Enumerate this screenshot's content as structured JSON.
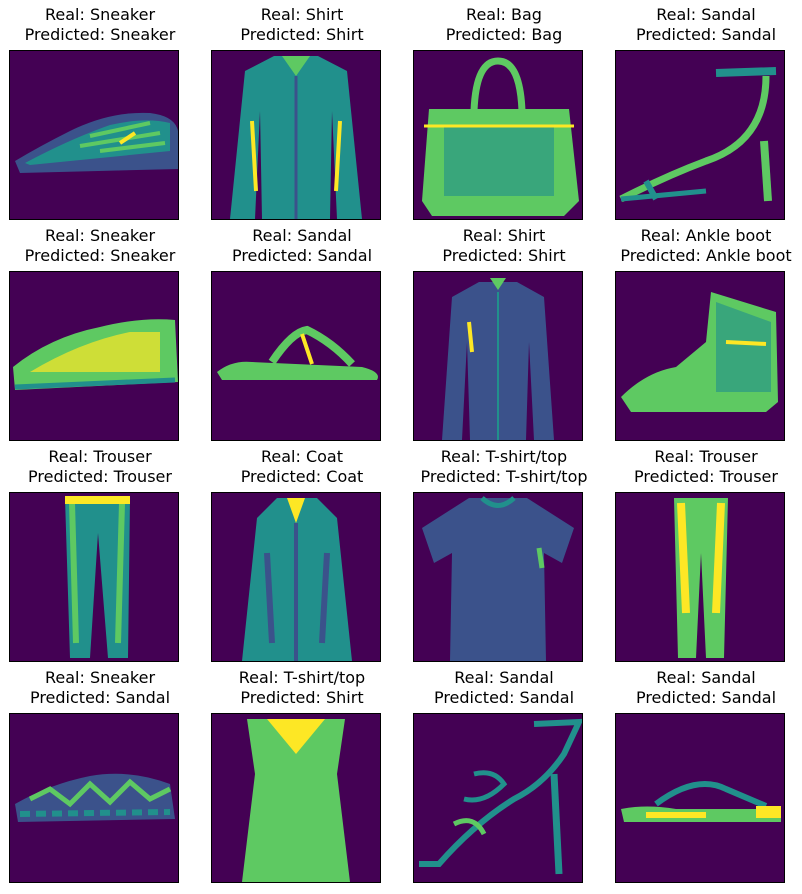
{
  "palette": {
    "background": "#440154",
    "dark": "#3b528b",
    "mid": "#21908c",
    "light": "#5ec962",
    "bright": "#fde725"
  },
  "grid": [
    {
      "real": "Real: Sneaker",
      "pred": "Predicted: Sneaker",
      "icon": "sneaker-icon"
    },
    {
      "real": "Real: Shirt",
      "pred": "Predicted: Shirt",
      "icon": "shirt-icon"
    },
    {
      "real": "Real: Bag",
      "pred": "Predicted: Bag",
      "icon": "bag-icon"
    },
    {
      "real": "Real: Sandal",
      "pred": "Predicted: Sandal",
      "icon": "sandal-heel-icon"
    },
    {
      "real": "Real: Sneaker",
      "pred": "Predicted: Sneaker",
      "icon": "sneaker-icon"
    },
    {
      "real": "Real: Sandal",
      "pred": "Predicted: Sandal",
      "icon": "sandal-flat-icon"
    },
    {
      "real": "Real: Shirt",
      "pred": "Predicted: Shirt",
      "icon": "shirt-icon"
    },
    {
      "real": "Real: Ankle boot",
      "pred": "Predicted: Ankle boot",
      "icon": "ankle-boot-icon"
    },
    {
      "real": "Real: Trouser",
      "pred": "Predicted: Trouser",
      "icon": "trouser-icon"
    },
    {
      "real": "Real: Coat",
      "pred": "Predicted: Coat",
      "icon": "coat-icon"
    },
    {
      "real": "Real: T-shirt/top",
      "pred": "Predicted: T-shirt/top",
      "icon": "tshirt-icon"
    },
    {
      "real": "Real: Trouser",
      "pred": "Predicted: Trouser",
      "icon": "trouser-icon"
    },
    {
      "real": "Real: Sneaker",
      "pred": "Predicted: Sandal",
      "icon": "sneaker-icon"
    },
    {
      "real": "Real: T-shirt/top",
      "pred": "Predicted: Shirt",
      "icon": "tank-top-icon"
    },
    {
      "real": "Real: Sandal",
      "pred": "Predicted: Sandal",
      "icon": "sandal-heel-icon"
    },
    {
      "real": "Real: Sandal",
      "pred": "Predicted: Sandal",
      "icon": "sandal-flat-icon"
    }
  ]
}
